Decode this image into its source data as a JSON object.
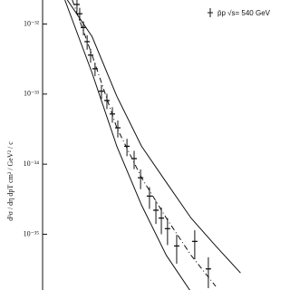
{
  "chart_data": {
    "type": "scatter",
    "y_label": "d³σ / dη dpT   cm² / GeV² / c",
    "log_y": true,
    "xlim": [
      0,
      10
    ],
    "ylim": [
      1.6e-36,
      2.2e-32
    ],
    "yticks": [
      {
        "value": 1e-32,
        "label": "10⁻³²"
      },
      {
        "value": 1e-33,
        "label": "10⁻³³"
      },
      {
        "value": 1e-34,
        "label": "10⁻³⁴"
      },
      {
        "value": 1e-35,
        "label": "10⁻³⁵"
      }
    ],
    "series": [
      {
        "name": "p̄p  √s= 540 GeV",
        "color": "#111111",
        "x": [
          1.39,
          1.5,
          1.65,
          1.8,
          1.94,
          2.12,
          2.38,
          2.6,
          2.82,
          3.04,
          3.41,
          3.7,
          3.96,
          4.32,
          4.58,
          4.8,
          5.05,
          5.42,
          6.15,
          6.7
        ],
        "values": [
          1.9e-32,
          1.4e-32,
          8.9e-33,
          5.6e-33,
          3.6e-33,
          2.3e-33,
          1.1e-33,
          8.1e-34,
          5.2e-34,
          3.3e-34,
          1.8e-34,
          1.2e-34,
          6.4e-35,
          3.5e-35,
          2.2e-35,
          1.7e-35,
          1.2e-35,
          6.8e-36,
          7.9e-36,
          3.2e-36
        ],
        "errors": [
          4e-33,
          3e-33,
          2e-33,
          1.3e-33,
          8e-34,
          5e-34,
          2.5e-34,
          2e-34,
          1.3e-34,
          9e-35,
          5e-35,
          3.5e-35,
          2e-35,
          1.2e-35,
          8e-36,
          7e-36,
          5e-36,
          3e-36,
          3.5e-36,
          1.5e-36
        ]
      },
      {
        "type": "line",
        "style": "solid",
        "color": "#111111",
        "x": [
          1.0,
          2,
          3,
          4,
          5,
          6,
          7,
          8
        ],
        "values": [
          2.2e-32,
          6.6e-33,
          9.3e-34,
          1.8e-34,
          5.5e-35,
          1.7e-35,
          6.8e-36,
          2.8e-36
        ]
      },
      {
        "type": "line",
        "style": "dashed",
        "color": "#111111",
        "x": [
          1.2,
          2,
          3,
          4,
          5,
          6,
          7
        ],
        "values": [
          2.2e-32,
          3.6e-33,
          3.3e-34,
          6.4e-35,
          1.7e-35,
          5e-36,
          1.8e-36
        ]
      },
      {
        "type": "line",
        "style": "solid",
        "color": "#111111",
        "x": [
          0.9,
          2,
          3,
          4,
          5,
          6
        ],
        "values": [
          2.2e-32,
          2e-33,
          1.8e-34,
          2.6e-35,
          5e-36,
          1.5e-36
        ]
      }
    ]
  }
}
